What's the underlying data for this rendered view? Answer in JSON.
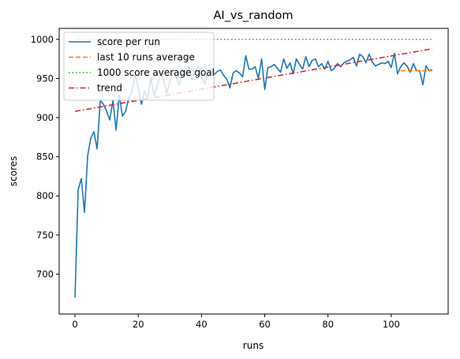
{
  "chart_data": {
    "type": "line",
    "title": "AI_vs_random",
    "xlabel": "runs",
    "ylabel": "scores",
    "xlim": [
      -5,
      118
    ],
    "ylim": [
      649,
      1014
    ],
    "xticks": [
      0,
      20,
      40,
      60,
      80,
      100
    ],
    "yticks": [
      700,
      750,
      800,
      850,
      900,
      950,
      1000
    ],
    "grid": false,
    "legend_position": "top-left",
    "series": [
      {
        "name": "score per run",
        "style": "solid",
        "color": "#1f77b4",
        "x": [
          0,
          1,
          2,
          3,
          4,
          5,
          6,
          7,
          8,
          9,
          10,
          11,
          12,
          13,
          14,
          15,
          16,
          17,
          18,
          19,
          20,
          21,
          22,
          23,
          24,
          25,
          26,
          27,
          28,
          29,
          30,
          31,
          32,
          33,
          34,
          35,
          36,
          37,
          38,
          39,
          40,
          41,
          42,
          43,
          44,
          45,
          46,
          47,
          48,
          49,
          50,
          51,
          52,
          53,
          54,
          55,
          56,
          57,
          58,
          59,
          60,
          61,
          62,
          63,
          64,
          65,
          66,
          67,
          68,
          69,
          70,
          71,
          72,
          73,
          74,
          75,
          76,
          77,
          78,
          79,
          80,
          81,
          82,
          83,
          84,
          85,
          86,
          87,
          88,
          89,
          90,
          91,
          92,
          93,
          94,
          95,
          96,
          97,
          98,
          99,
          100,
          101,
          102,
          103,
          104,
          105,
          106,
          107,
          108,
          109,
          110,
          111,
          112,
          113
        ],
        "y": [
          670,
          808,
          822,
          779,
          851,
          874,
          882,
          860,
          922,
          917,
          908,
          897,
          922,
          884,
          929,
          902,
          908,
          925,
          933,
          955,
          938,
          917,
          934,
          925,
          951,
          928,
          940,
          955,
          949,
          931,
          946,
          958,
          952,
          941,
          962,
          954,
          966,
          948,
          959,
          965,
          952,
          943,
          958,
          963,
          955,
          959,
          961,
          954,
          949,
          938,
          957,
          960,
          957,
          952,
          979,
          962,
          962,
          965,
          950,
          975,
          936,
          964,
          965,
          968,
          963,
          958,
          975,
          963,
          970,
          956,
          975,
          968,
          962,
          978,
          965,
          973,
          975,
          965,
          969,
          962,
          972,
          960,
          963,
          969,
          965,
          970,
          972,
          974,
          977,
          966,
          981,
          978,
          970,
          981,
          971,
          966,
          968,
          970,
          969,
          972,
          964,
          982,
          956,
          965,
          970,
          966,
          958,
          969,
          960,
          960,
          942,
          966,
          960,
          961
        ]
      },
      {
        "name": "last 10 runs average",
        "style": "dashed",
        "color": "#ff7f0e",
        "x": [
          103,
          113
        ],
        "y": [
          960,
          960
        ]
      },
      {
        "name": "1000 score average goal",
        "style": "dotted",
        "color": "#2ca02c",
        "x": [
          0,
          113
        ],
        "y": [
          1000,
          1000
        ]
      },
      {
        "name": "trend",
        "style": "dashdot",
        "color": "#d62728",
        "x": [
          0,
          113
        ],
        "y": [
          908,
          988
        ]
      }
    ]
  }
}
